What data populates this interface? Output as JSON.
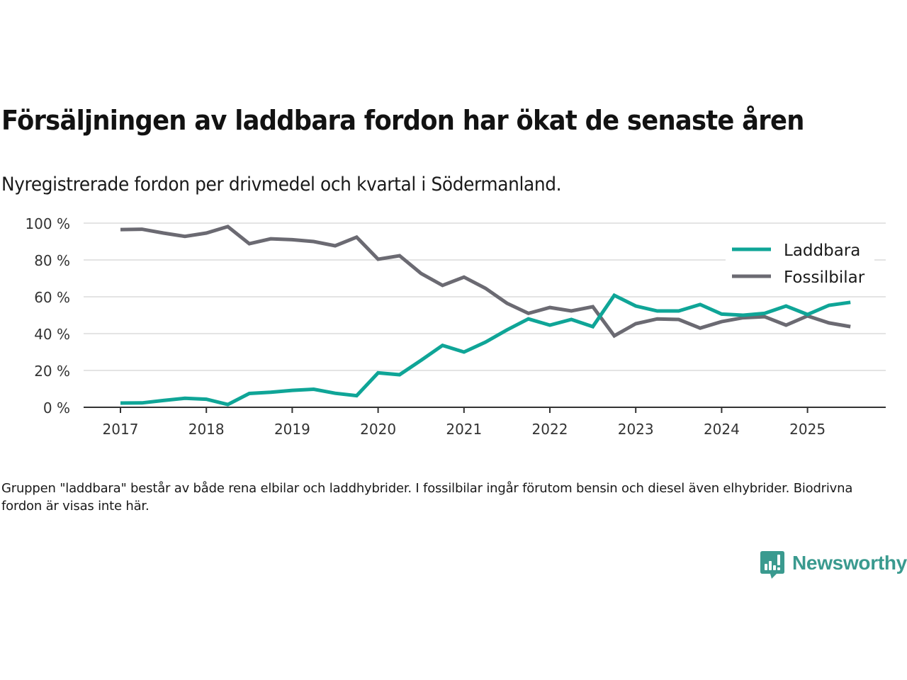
{
  "header": {
    "title": "Försäljningen av laddbara fordon har ökat de senaste åren",
    "subtitle": "Nyregistrerade fordon per drivmedel och kvartal i Södermanland."
  },
  "footnote": "Gruppen \"laddbara\" består av både rena elbilar och laddhybrider. I fossilbilar ingår förutom bensin och diesel även elhybrider. Biodrivna fordon är visas inte här.",
  "logo": {
    "text": "Newsworthy",
    "icon": "newsworthy-logo-icon",
    "color": "#3a9a8f"
  },
  "colors": {
    "laddbara": "#0fa597",
    "fossilbilar": "#6b6a72",
    "grid": "#dcdcdc",
    "axis": "#333333"
  },
  "chart_data": {
    "type": "line",
    "title": "Försäljningen av laddbara fordon har ökat de senaste åren",
    "subtitle": "Nyregistrerade fordon per drivmedel och kvartal i Södermanland.",
    "xlabel": "",
    "ylabel": "",
    "x": [
      "2017Q1",
      "2017Q2",
      "2017Q3",
      "2017Q4",
      "2018Q1",
      "2018Q2",
      "2018Q3",
      "2018Q4",
      "2019Q1",
      "2019Q2",
      "2019Q3",
      "2019Q4",
      "2020Q1",
      "2020Q2",
      "2020Q3",
      "2020Q4",
      "2021Q1",
      "2021Q2",
      "2021Q3",
      "2021Q4",
      "2022Q1",
      "2022Q2",
      "2022Q3",
      "2022Q4",
      "2023Q1",
      "2023Q2",
      "2023Q3",
      "2023Q4",
      "2024Q1",
      "2024Q2",
      "2024Q3",
      "2024Q4",
      "2025Q1",
      "2025Q2",
      "2025Q3"
    ],
    "x_tick_labels": [
      "2017",
      "2018",
      "2019",
      "2020",
      "2021",
      "2022",
      "2023",
      "2024",
      "2025"
    ],
    "y_tick_labels": [
      "0 %",
      "20 %",
      "40 %",
      "60 %",
      "80 %",
      "100 %"
    ],
    "y_ticks": [
      0,
      20,
      40,
      60,
      80,
      100
    ],
    "ylim": [
      0,
      100
    ],
    "grid": true,
    "legend_position": "top-right",
    "series": [
      {
        "name": "Laddbara",
        "color": "#0fa597",
        "values": [
          2.3,
          2.4,
          3.7,
          4.9,
          4.4,
          1.5,
          7.5,
          8.2,
          9.2,
          9.8,
          7.6,
          6.3,
          18.7,
          17.7,
          25.5,
          33.6,
          30.0,
          35.4,
          42.0,
          48.0,
          44.6,
          47.7,
          43.8,
          60.8,
          55.0,
          52.3,
          52.3,
          55.8,
          50.6,
          50.0,
          51.0,
          55.0,
          50.4,
          55.4,
          57.0
        ]
      },
      {
        "name": "Fossilbilar",
        "color": "#6b6a72",
        "values": [
          96.5,
          96.7,
          94.6,
          92.8,
          94.6,
          98.1,
          88.8,
          91.5,
          91.0,
          90.0,
          87.7,
          92.4,
          80.4,
          82.3,
          72.7,
          66.2,
          70.7,
          64.6,
          56.5,
          51.0,
          54.2,
          52.3,
          54.6,
          38.8,
          45.4,
          48.0,
          47.7,
          43.0,
          46.5,
          48.6,
          49.2,
          44.6,
          49.6,
          45.8,
          43.8
        ]
      }
    ]
  }
}
